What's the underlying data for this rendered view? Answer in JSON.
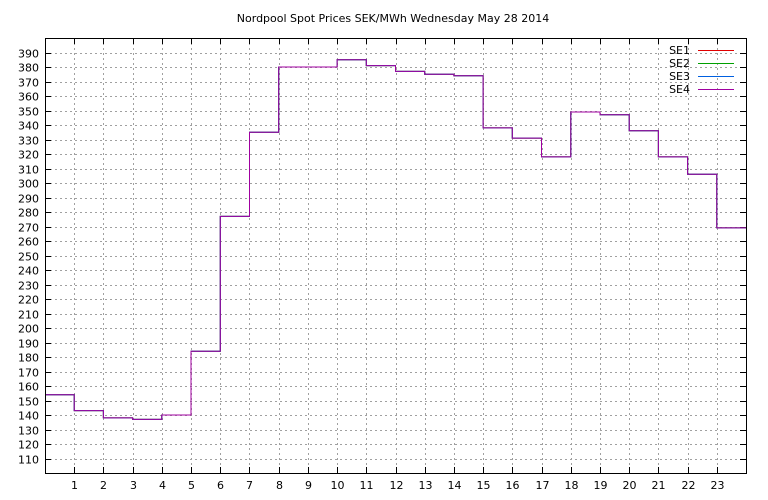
{
  "chart_data": {
    "type": "line",
    "step": true,
    "title": "Nordpool Spot Prices SEK/MWh Wednesday May 28 2014",
    "xlabel": "",
    "ylabel": "",
    "xlim": [
      0,
      24
    ],
    "ylim": [
      100,
      400
    ],
    "x_ticks": [
      1,
      2,
      3,
      4,
      5,
      6,
      7,
      8,
      9,
      10,
      11,
      12,
      13,
      14,
      15,
      16,
      17,
      18,
      19,
      20,
      21,
      22,
      23
    ],
    "y_ticks": [
      110,
      120,
      130,
      140,
      150,
      160,
      170,
      180,
      190,
      200,
      210,
      220,
      230,
      240,
      250,
      260,
      270,
      280,
      290,
      300,
      310,
      320,
      330,
      340,
      350,
      360,
      370,
      380,
      390
    ],
    "grid": true,
    "legend_position": "top-right",
    "x": [
      0,
      1,
      2,
      3,
      4,
      5,
      6,
      7,
      8,
      9,
      10,
      11,
      12,
      13,
      14,
      15,
      16,
      17,
      18,
      19,
      20,
      21,
      22,
      23
    ],
    "series": [
      {
        "name": "SE1",
        "color": "#e00000",
        "values": [
          154,
          143,
          138,
          137,
          140,
          184,
          277,
          335,
          380,
          380,
          385,
          381,
          377,
          375,
          374,
          338,
          331,
          318,
          349,
          347,
          336,
          318,
          306,
          269
        ]
      },
      {
        "name": "SE2",
        "color": "#00a000",
        "values": [
          154,
          143,
          138,
          137,
          140,
          184,
          277,
          335,
          380,
          380,
          385,
          381,
          377,
          375,
          374,
          338,
          331,
          318,
          349,
          347,
          336,
          318,
          306,
          269
        ]
      },
      {
        "name": "SE3",
        "color": "#0060e0",
        "values": [
          154,
          143,
          138,
          137,
          140,
          184,
          277,
          335,
          380,
          380,
          385,
          381,
          377,
          375,
          374,
          338,
          331,
          318,
          349,
          347,
          336,
          318,
          306,
          269
        ]
      },
      {
        "name": "SE4",
        "color": "#a000a0",
        "values": [
          154,
          143,
          138,
          137,
          140,
          184,
          277,
          335,
          380,
          380,
          385,
          381,
          377,
          375,
          374,
          338,
          331,
          318,
          349,
          347,
          336,
          318,
          306,
          269
        ]
      }
    ]
  }
}
